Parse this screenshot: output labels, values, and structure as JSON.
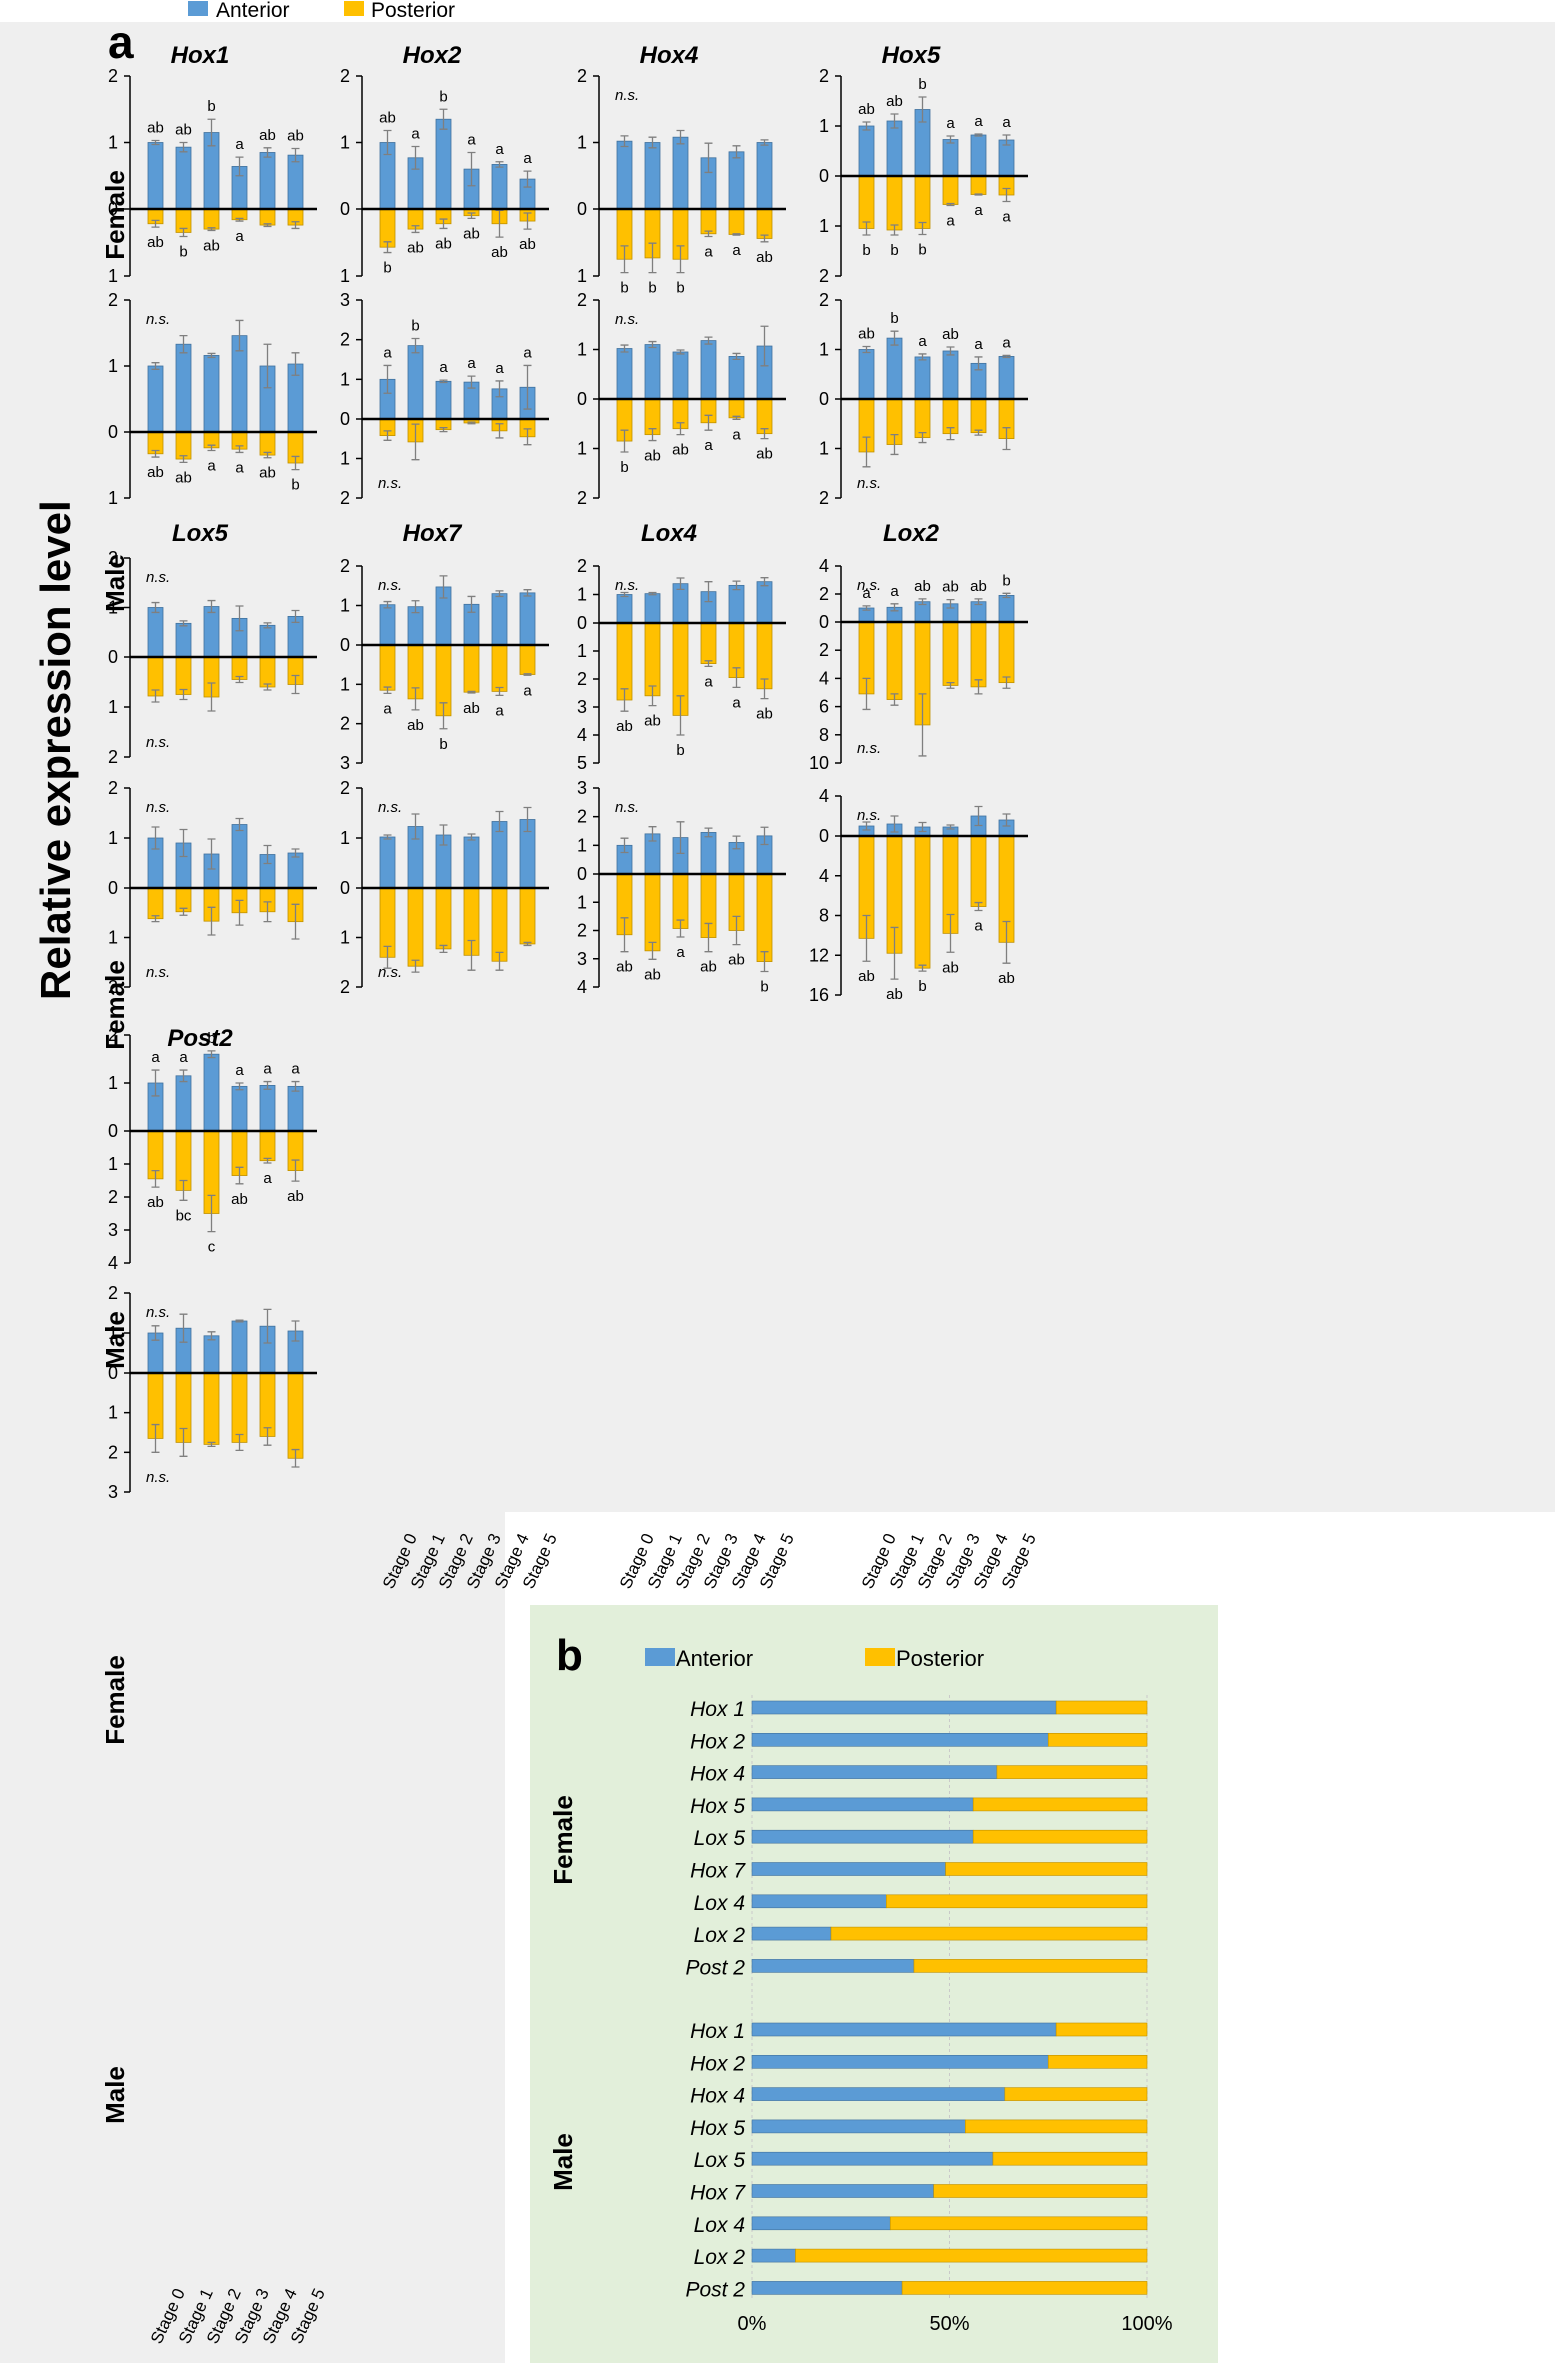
{
  "legend": {
    "anterior": "Anterior",
    "posterior": "Posterior"
  },
  "colors": {
    "anterior": "#5b9bd5",
    "posterior": "#ffc000",
    "panel_a_bg": "#efefef",
    "panel_b_bg": "#e2efda",
    "error": "#7f7f7f"
  },
  "panel_a": {
    "label": "a",
    "y_title": "Relative expression level",
    "stages": [
      "Stage 0",
      "Stage 1",
      "Stage 2",
      "Stage 3",
      "Stage 4",
      "Stage 5"
    ]
  },
  "panel_b": {
    "label": "b",
    "legend": {
      "anterior": "Anterior",
      "posterior": "Posterior"
    },
    "groups": [
      "Female",
      "Male"
    ],
    "x_ticks": [
      "0%",
      "50%",
      "100%"
    ]
  },
  "chart_data": [
    {
      "type": "bar",
      "title": "Hox1",
      "row": "Female",
      "ant_ticks": [
        "2",
        "1",
        "0"
      ],
      "post_ticks": [
        "1"
      ],
      "ant_max": 2,
      "post_max": 1,
      "ant": [
        1.0,
        0.93,
        1.15,
        0.64,
        0.85,
        0.81
      ],
      "ant_err": [
        0.03,
        0.07,
        0.2,
        0.14,
        0.07,
        0.1
      ],
      "ant_sig": [
        "ab",
        "ab",
        "b",
        "a",
        "ab",
        "ab"
      ],
      "post": [
        0.22,
        0.35,
        0.3,
        0.16,
        0.24,
        0.24
      ],
      "post_err": [
        0.05,
        0.06,
        0.02,
        0.02,
        0.02,
        0.05
      ],
      "post_sig": [
        "ab",
        "b",
        "ab",
        "a",
        "",
        ""
      ],
      "ns_top": "",
      "ns_bottom": ""
    },
    {
      "type": "bar",
      "title": "Hox2",
      "row": "Female",
      "ant_ticks": [
        "2",
        "1",
        "0"
      ],
      "post_ticks": [
        "1"
      ],
      "ant_max": 2,
      "post_max": 1,
      "ant": [
        1.0,
        0.77,
        1.35,
        0.6,
        0.67,
        0.45
      ],
      "ant_err": [
        0.18,
        0.17,
        0.15,
        0.25,
        0.04,
        0.12
      ],
      "ant_sig": [
        "ab",
        "a",
        "b",
        "a",
        "a",
        "a"
      ],
      "post": [
        0.57,
        0.3,
        0.22,
        0.1,
        0.22,
        0.18
      ],
      "post_err": [
        0.08,
        0.05,
        0.07,
        0.04,
        0.2,
        0.12
      ],
      "post_sig": [
        "b",
        "ab",
        "ab",
        "ab",
        "ab",
        "ab"
      ],
      "ns_top": "",
      "ns_bottom": ""
    },
    {
      "type": "bar",
      "title": "Hox4",
      "row": "Female",
      "ant_ticks": [
        "2",
        "1",
        "0"
      ],
      "post_ticks": [
        "1"
      ],
      "ant_max": 2,
      "post_max": 1,
      "ant": [
        1.02,
        1.0,
        1.08,
        0.77,
        0.86,
        1.0
      ],
      "ant_err": [
        0.08,
        0.08,
        0.1,
        0.22,
        0.09,
        0.04
      ],
      "ant_sig": [
        "",
        "",
        "",
        "",
        "",
        ""
      ],
      "post": [
        0.75,
        0.73,
        0.75,
        0.37,
        0.38,
        0.44
      ],
      "post_err": [
        0.2,
        0.22,
        0.2,
        0.04,
        0.01,
        0.05
      ],
      "post_sig": [
        "b",
        "b",
        "b",
        "a",
        "a",
        "ab"
      ],
      "ns_top": "n.s.",
      "ns_bottom": ""
    },
    {
      "type": "bar",
      "title": "Hox5",
      "row": "Female",
      "ant_ticks": [
        "2",
        "1",
        "0"
      ],
      "post_ticks": [
        "1",
        "2"
      ],
      "ant_max": 2,
      "post_max": 2,
      "ant": [
        1.0,
        1.1,
        1.33,
        0.73,
        0.82,
        0.72
      ],
      "ant_err": [
        0.08,
        0.14,
        0.25,
        0.07,
        0.02,
        0.1
      ],
      "ant_sig": [
        "ab",
        "ab",
        "b",
        "a",
        "a",
        "a"
      ],
      "post": [
        1.05,
        1.08,
        1.05,
        0.57,
        0.37,
        0.38
      ],
      "post_err": [
        0.13,
        0.1,
        0.12,
        0.02,
        0.01,
        0.13
      ],
      "post_sig": [
        "b",
        "b",
        "b",
        "a",
        "a",
        "a"
      ],
      "ns_top": "",
      "ns_bottom": ""
    },
    {
      "type": "bar",
      "title": "",
      "row": "Male",
      "ant_ticks": [
        "2",
        "1",
        "0"
      ],
      "post_ticks": [
        "1"
      ],
      "ant_max": 2,
      "post_max": 1,
      "ant": [
        1.0,
        1.33,
        1.16,
        1.46,
        1.0,
        1.03
      ],
      "ant_err": [
        0.05,
        0.13,
        0.03,
        0.23,
        0.33,
        0.17
      ],
      "ant_sig": [
        "",
        "",
        "",
        "",
        "",
        ""
      ],
      "post": [
        0.33,
        0.41,
        0.24,
        0.26,
        0.35,
        0.47
      ],
      "post_err": [
        0.05,
        0.05,
        0.04,
        0.05,
        0.04,
        0.1
      ],
      "post_sig": [
        "ab",
        "ab",
        "a",
        "a",
        "ab",
        "b"
      ],
      "ns_top": "n.s.",
      "ns_bottom": ""
    },
    {
      "type": "bar",
      "title": "",
      "row": "Male",
      "ant_ticks": [
        "3",
        "2",
        "1",
        "0"
      ],
      "post_ticks": [
        "1",
        "2"
      ],
      "ant_max": 3,
      "post_max": 2,
      "ant": [
        1.0,
        1.85,
        0.95,
        0.93,
        0.76,
        0.8
      ],
      "ant_err": [
        0.35,
        0.18,
        0.03,
        0.15,
        0.2,
        0.55
      ],
      "ant_sig": [
        "a",
        "b",
        "a",
        "a",
        "a",
        "a"
      ],
      "post": [
        0.42,
        0.58,
        0.27,
        0.1,
        0.3,
        0.45
      ],
      "post_err": [
        0.12,
        0.45,
        0.05,
        0.02,
        0.18,
        0.2
      ],
      "post_sig": [
        "",
        "",
        "",
        "",
        "",
        ""
      ],
      "ns_top": "",
      "ns_bottom": "n.s."
    },
    {
      "type": "bar",
      "title": "",
      "row": "Male",
      "ant_ticks": [
        "2",
        "1",
        "0"
      ],
      "post_ticks": [
        "1",
        "2"
      ],
      "ant_max": 2,
      "post_max": 2,
      "ant": [
        1.02,
        1.1,
        0.95,
        1.18,
        0.86,
        1.07
      ],
      "ant_err": [
        0.07,
        0.06,
        0.04,
        0.07,
        0.06,
        0.4
      ],
      "ant_sig": [
        "",
        "",
        "",
        "",
        "",
        ""
      ],
      "post": [
        0.85,
        0.72,
        0.6,
        0.48,
        0.38,
        0.7
      ],
      "post_err": [
        0.22,
        0.12,
        0.12,
        0.15,
        0.03,
        0.1
      ],
      "post_sig": [
        "b",
        "ab",
        "ab",
        "a",
        "a",
        "ab"
      ],
      "ns_top": "n.s.",
      "ns_bottom": ""
    },
    {
      "type": "bar",
      "title": "",
      "row": "Male",
      "ant_ticks": [
        "2",
        "1",
        "0"
      ],
      "post_ticks": [
        "1",
        "2"
      ],
      "ant_max": 2,
      "post_max": 2,
      "ant": [
        1.0,
        1.23,
        0.85,
        0.97,
        0.72,
        0.86
      ],
      "ant_err": [
        0.06,
        0.14,
        0.06,
        0.08,
        0.13,
        0.02
      ],
      "ant_sig": [
        "ab",
        "b",
        "a",
        "ab",
        "a",
        "a"
      ],
      "post": [
        1.07,
        0.92,
        0.78,
        0.7,
        0.68,
        0.8
      ],
      "post_err": [
        0.3,
        0.2,
        0.1,
        0.12,
        0.05,
        0.22
      ],
      "post_sig": [
        "",
        "",
        "",
        "",
        "",
        ""
      ],
      "ns_top": "",
      "ns_bottom": "n.s."
    },
    {
      "type": "bar",
      "title": "Lox5",
      "row": "Female",
      "ant_ticks": [
        "2",
        "1",
        "0"
      ],
      "post_ticks": [
        "1",
        "2"
      ],
      "ant_max": 2,
      "post_max": 2,
      "ant": [
        1.0,
        0.68,
        1.02,
        0.78,
        0.64,
        0.82
      ],
      "ant_err": [
        0.1,
        0.05,
        0.12,
        0.25,
        0.05,
        0.12
      ],
      "ant_sig": [
        "",
        "",
        "",
        "",
        "",
        ""
      ],
      "post": [
        0.78,
        0.75,
        0.8,
        0.45,
        0.6,
        0.55
      ],
      "post_err": [
        0.12,
        0.1,
        0.28,
        0.06,
        0.06,
        0.18
      ],
      "post_sig": [
        "",
        "",
        "",
        "",
        "",
        ""
      ],
      "ns_top": "n.s.",
      "ns_bottom": "n.s."
    },
    {
      "type": "bar",
      "title": "Hox7",
      "row": "Female",
      "ant_ticks": [
        "2",
        "1",
        "0"
      ],
      "post_ticks": [
        "1",
        "2",
        "3"
      ],
      "ant_max": 2,
      "post_max": 3,
      "ant": [
        1.02,
        0.97,
        1.47,
        1.03,
        1.3,
        1.32
      ],
      "ant_err": [
        0.08,
        0.15,
        0.28,
        0.2,
        0.07,
        0.08
      ],
      "ant_sig": [
        "",
        "",
        "",
        "",
        "",
        ""
      ],
      "post": [
        1.15,
        1.37,
        1.8,
        1.2,
        1.18,
        0.75
      ],
      "post_err": [
        0.08,
        0.28,
        0.33,
        0.02,
        0.1,
        0.02
      ],
      "post_sig": [
        "a",
        "ab",
        "b",
        "ab",
        "a",
        "a"
      ],
      "ns_top": "n.s.",
      "ns_bottom": ""
    },
    {
      "type": "bar",
      "title": "Lox4",
      "row": "Female",
      "ant_ticks": [
        "2",
        "1",
        "0"
      ],
      "post_ticks": [
        "1",
        "2",
        "3",
        "4",
        "5"
      ],
      "ant_max": 2,
      "post_max": 5,
      "ant": [
        1.0,
        1.03,
        1.38,
        1.1,
        1.32,
        1.45
      ],
      "ant_err": [
        0.07,
        0.04,
        0.2,
        0.35,
        0.15,
        0.14
      ],
      "ant_sig": [
        "",
        "",
        "",
        "",
        "",
        ""
      ],
      "post": [
        2.75,
        2.6,
        3.3,
        1.45,
        1.95,
        2.35
      ],
      "post_err": [
        0.4,
        0.35,
        0.7,
        0.1,
        0.35,
        0.35
      ],
      "post_sig": [
        "ab",
        "ab",
        "b",
        "a",
        "a",
        "ab"
      ],
      "ns_top": "n.s.",
      "ns_bottom": ""
    },
    {
      "type": "bar",
      "title": "Lox2",
      "row": "Female",
      "ant_ticks": [
        "4",
        "2",
        "0"
      ],
      "post_ticks": [
        "2",
        "4",
        "6",
        "8",
        "10"
      ],
      "ant_max": 4,
      "post_max": 10,
      "ant": [
        1.0,
        1.05,
        1.45,
        1.3,
        1.45,
        1.9
      ],
      "ant_err": [
        0.15,
        0.25,
        0.2,
        0.3,
        0.2,
        0.15
      ],
      "ant_sig": [
        "a",
        "a",
        "ab",
        "ab",
        "ab",
        "b"
      ],
      "post": [
        5.1,
        5.5,
        7.3,
        4.5,
        4.6,
        4.3
      ],
      "post_err": [
        1.1,
        0.4,
        2.2,
        0.2,
        0.5,
        0.4
      ],
      "post_sig": [
        "",
        "",
        "",
        "",
        "",
        ""
      ],
      "ns_top": "n.s.",
      "ns_bottom": "n.s."
    },
    {
      "type": "bar",
      "title": "",
      "row": "Male",
      "ant_ticks": [
        "2",
        "1",
        "0"
      ],
      "post_ticks": [
        "1",
        "2"
      ],
      "ant_max": 2,
      "post_max": 2,
      "ant": [
        1.0,
        0.9,
        0.68,
        1.27,
        0.67,
        0.7
      ],
      "ant_err": [
        0.22,
        0.27,
        0.3,
        0.12,
        0.18,
        0.08
      ],
      "ant_sig": [
        "",
        "",
        "",
        "",
        "",
        ""
      ],
      "post": [
        0.62,
        0.48,
        0.67,
        0.5,
        0.48,
        0.68
      ],
      "post_err": [
        0.06,
        0.07,
        0.28,
        0.25,
        0.2,
        0.35
      ],
      "post_sig": [
        "",
        "",
        "",
        "",
        "",
        ""
      ],
      "ns_top": "n.s.",
      "ns_bottom": "n.s."
    },
    {
      "type": "bar",
      "title": "",
      "row": "Male",
      "ant_ticks": [
        "2",
        "1",
        "0"
      ],
      "post_ticks": [
        "1",
        "2"
      ],
      "ant_max": 2,
      "post_max": 2,
      "ant": [
        1.02,
        1.23,
        1.06,
        1.02,
        1.33,
        1.37
      ],
      "ant_err": [
        0.04,
        0.25,
        0.2,
        0.06,
        0.2,
        0.24
      ],
      "ant_sig": [
        "",
        "",
        "",
        "",
        "",
        ""
      ],
      "post": [
        1.4,
        1.58,
        1.23,
        1.36,
        1.48,
        1.13
      ],
      "post_err": [
        0.22,
        0.12,
        0.07,
        0.3,
        0.18,
        0.03
      ],
      "post_sig": [
        "",
        "",
        "",
        "",
        "",
        ""
      ],
      "ns_top": "n.s.",
      "ns_bottom": "n.s."
    },
    {
      "type": "bar",
      "title": "",
      "row": "Male",
      "ant_ticks": [
        "3",
        "2",
        "1",
        "0"
      ],
      "post_ticks": [
        "1",
        "2",
        "3",
        "4"
      ],
      "ant_max": 3,
      "post_max": 4,
      "ant": [
        1.0,
        1.4,
        1.27,
        1.45,
        1.1,
        1.33
      ],
      "ant_err": [
        0.25,
        0.25,
        0.55,
        0.15,
        0.22,
        0.3
      ],
      "ant_sig": [
        "",
        "",
        "",
        "",
        "",
        ""
      ],
      "post": [
        2.15,
        2.72,
        1.93,
        2.25,
        2.0,
        3.1
      ],
      "post_err": [
        0.6,
        0.3,
        0.3,
        0.5,
        0.5,
        0.35
      ],
      "post_sig": [
        "ab",
        "ab",
        "a",
        "ab",
        "ab",
        "b"
      ],
      "ns_top": "n.s.",
      "ns_bottom": ""
    },
    {
      "type": "bar",
      "title": "",
      "row": "Male",
      "ant_ticks": [
        "4",
        "0"
      ],
      "post_ticks": [
        "4",
        "8",
        "12",
        "16"
      ],
      "ant_max": 4,
      "post_max": 16,
      "ant": [
        1.0,
        1.2,
        0.9,
        0.9,
        2.0,
        1.6
      ],
      "ant_err": [
        0.4,
        0.8,
        0.45,
        0.2,
        0.95,
        0.6
      ],
      "ant_sig": [
        "",
        "",
        "",
        "",
        "",
        ""
      ],
      "post": [
        10.3,
        11.8,
        13.3,
        9.8,
        7.1,
        10.7
      ],
      "post_err": [
        2.3,
        2.6,
        0.3,
        1.9,
        0.4,
        2.1
      ],
      "post_sig": [
        "ab",
        "ab",
        "b",
        "ab",
        "a",
        "ab"
      ],
      "ns_top": "n.s.",
      "ns_bottom": ""
    },
    {
      "type": "bar",
      "title": "Post2",
      "row": "Female",
      "ant_ticks": [
        "2",
        "1",
        "0"
      ],
      "post_ticks": [
        "1",
        "2",
        "3",
        "4"
      ],
      "ant_max": 2,
      "post_max": 4,
      "ant": [
        1.0,
        1.15,
        1.6,
        0.93,
        0.95,
        0.93
      ],
      "ant_err": [
        0.27,
        0.12,
        0.07,
        0.07,
        0.08,
        0.1
      ],
      "ant_sig": [
        "a",
        "a",
        "b",
        "a",
        "a",
        "a"
      ],
      "post": [
        1.45,
        1.8,
        2.5,
        1.35,
        0.9,
        1.2
      ],
      "post_err": [
        0.25,
        0.3,
        0.55,
        0.25,
        0.07,
        0.32
      ],
      "post_sig": [
        "ab",
        "bc",
        "c",
        "ab",
        "a",
        "ab"
      ],
      "ns_top": "",
      "ns_bottom": ""
    },
    {
      "type": "bar",
      "title": "",
      "row": "Male",
      "ant_ticks": [
        "2",
        "1",
        "0"
      ],
      "post_ticks": [
        "1",
        "2",
        "3"
      ],
      "ant_max": 2,
      "post_max": 3,
      "ant": [
        1.0,
        1.12,
        0.93,
        1.3,
        1.17,
        1.05
      ],
      "ant_err": [
        0.18,
        0.35,
        0.1,
        0.02,
        0.42,
        0.25
      ],
      "ant_sig": [
        "",
        "",
        "",
        "",
        "",
        ""
      ],
      "post": [
        1.65,
        1.75,
        1.8,
        1.75,
        1.6,
        2.15
      ],
      "post_err": [
        0.35,
        0.35,
        0.05,
        0.2,
        0.22,
        0.22
      ],
      "post_sig": [
        "",
        "",
        "",
        "",
        "",
        ""
      ],
      "ns_top": "n.s.",
      "ns_bottom": "n.s."
    },
    {
      "type": "stacked-bar-horizontal",
      "panel": "b",
      "categories": [
        "Hox 1",
        "Hox 2",
        "Hox 4",
        "Hox 5",
        "Lox 5",
        "Hox 7",
        "Lox 4",
        "Lox 2",
        "Post 2"
      ],
      "series": [
        {
          "name": "Female",
          "anterior_pct": [
            77,
            75,
            62,
            56,
            56,
            49,
            34,
            20,
            41
          ]
        },
        {
          "name": "Male",
          "anterior_pct": [
            77,
            75,
            64,
            54,
            61,
            46,
            35,
            11,
            38
          ]
        }
      ],
      "xlim": [
        0,
        100
      ]
    }
  ]
}
